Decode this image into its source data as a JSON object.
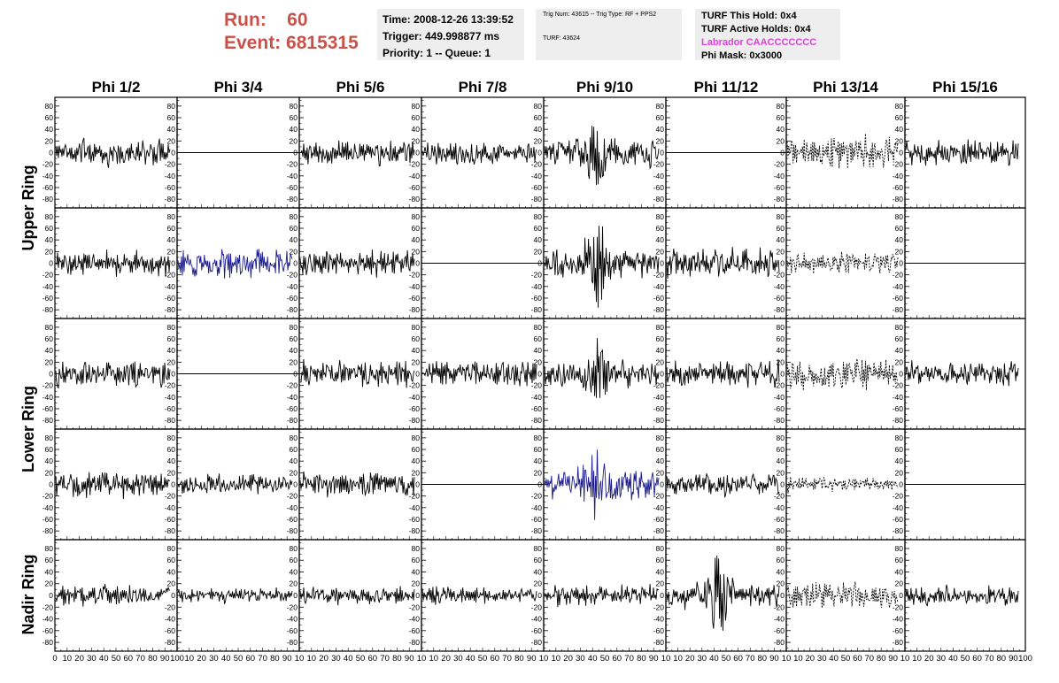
{
  "header": {
    "run_label": "Run:",
    "run_value": "60",
    "event_label": "Event:",
    "event_value": "6815315",
    "time": "Time: 2008-12-26 13:39:52",
    "trigger": "Trigger: 449.998877 ms",
    "priority": "Priority: 1 -- Queue: 1",
    "trig_num": "Trig Num: 43615 -- Trig Type: RF + PPS2",
    "turf": "TURF: 43624",
    "turf_this_hold": "TURF This Hold: 0x4",
    "turf_active_holds": "TURF Active Holds: 0x4",
    "labrador": "Labrador CAACCCCCCC",
    "phi_mask": "Phi Mask: 0x3000"
  },
  "colors": {
    "trace": "#000000",
    "highlight": "#1c1c8c",
    "header_red": "#c8524a",
    "labrador": "#e040e0"
  },
  "chart_data": {
    "type": "line",
    "columns": [
      "Phi 1/2",
      "Phi 3/4",
      "Phi 5/6",
      "Phi 7/8",
      "Phi 9/10",
      "Phi 11/12",
      "Phi 13/14",
      "Phi 15/16"
    ],
    "ring_labels": [
      "Upper Ring",
      "Lower Ring",
      "Nadir Ring"
    ],
    "ylim": [
      -95,
      95
    ],
    "xlim": [
      0,
      100
    ],
    "y_ticks": [
      -80,
      -60,
      -40,
      -20,
      0,
      20,
      40,
      60,
      80
    ],
    "x_tick_labels": [
      [
        "0",
        "10",
        "20",
        "30",
        "40",
        "50",
        "60",
        "70",
        "80",
        "90",
        "100"
      ],
      [
        "10",
        "20",
        "30",
        "40",
        "50",
        "60",
        "70",
        "80",
        "90",
        "10"
      ],
      [
        "10",
        "20",
        "30",
        "40",
        "50",
        "60",
        "70",
        "80",
        "90",
        "10"
      ],
      [
        "10",
        "20",
        "30",
        "40",
        "50",
        "60",
        "70",
        "80",
        "90",
        "10"
      ],
      [
        "10",
        "20",
        "30",
        "40",
        "50",
        "60",
        "70",
        "80",
        "90",
        "10"
      ],
      [
        "10",
        "20",
        "30",
        "40",
        "50",
        "60",
        "70",
        "80",
        "90",
        "10"
      ],
      [
        "10",
        "20",
        "30",
        "40",
        "50",
        "60",
        "70",
        "80",
        "90",
        "10"
      ],
      [
        "10",
        "20",
        "30",
        "40",
        "50",
        "60",
        "70",
        "80",
        "90",
        "100"
      ]
    ],
    "panels": [
      [
        {
          "amp": 18,
          "style": "solid",
          "color": "black",
          "burst": 0
        },
        {
          "amp": 0,
          "style": "flat",
          "color": "black",
          "burst": 0
        },
        {
          "amp": 18,
          "style": "solid",
          "color": "black",
          "burst": 0
        },
        {
          "amp": 16,
          "style": "solid",
          "color": "black",
          "burst": 0
        },
        {
          "amp": 20,
          "style": "solid",
          "color": "black",
          "burst": 45
        },
        {
          "amp": 0,
          "style": "flat",
          "color": "black",
          "burst": 0
        },
        {
          "amp": 22,
          "style": "dashed",
          "color": "black",
          "burst": 0
        },
        {
          "amp": 18,
          "style": "solid",
          "color": "black",
          "burst": 0
        }
      ],
      [
        {
          "amp": 18,
          "style": "solid",
          "color": "black",
          "burst": 0
        },
        {
          "amp": 20,
          "style": "solid",
          "color": "blue",
          "burst": 0
        },
        {
          "amp": 18,
          "style": "solid",
          "color": "black",
          "burst": 0
        },
        {
          "amp": 0,
          "style": "flat",
          "color": "black",
          "burst": 0
        },
        {
          "amp": 20,
          "style": "solid",
          "color": "black",
          "burst": 70
        },
        {
          "amp": 20,
          "style": "solid",
          "color": "black",
          "burst": 0
        },
        {
          "amp": 14,
          "style": "dashed",
          "color": "black",
          "burst": 0
        },
        {
          "amp": 0,
          "style": "flat",
          "color": "black",
          "burst": 0
        }
      ],
      [
        {
          "amp": 18,
          "style": "solid",
          "color": "black",
          "burst": 0
        },
        {
          "amp": 0,
          "style": "flat",
          "color": "black",
          "burst": 0
        },
        {
          "amp": 18,
          "style": "solid",
          "color": "black",
          "burst": 0
        },
        {
          "amp": 18,
          "style": "solid",
          "color": "black",
          "burst": 0
        },
        {
          "amp": 18,
          "style": "solid",
          "color": "black",
          "burst": 50
        },
        {
          "amp": 18,
          "style": "solid",
          "color": "black",
          "burst": 0
        },
        {
          "amp": 20,
          "style": "dashed",
          "color": "black",
          "burst": 0
        },
        {
          "amp": 16,
          "style": "solid",
          "color": "black",
          "burst": 0
        }
      ],
      [
        {
          "amp": 18,
          "style": "solid",
          "color": "black",
          "burst": 0
        },
        {
          "amp": 14,
          "style": "solid",
          "color": "black",
          "burst": 0
        },
        {
          "amp": 18,
          "style": "solid",
          "color": "black",
          "burst": 0
        },
        {
          "amp": 0,
          "style": "flat",
          "color": "black",
          "burst": 0
        },
        {
          "amp": 22,
          "style": "solid",
          "color": "blue",
          "burst": 55
        },
        {
          "amp": 16,
          "style": "solid",
          "color": "black",
          "burst": 0
        },
        {
          "amp": 10,
          "style": "dashed",
          "color": "black",
          "burst": 0
        },
        {
          "amp": 0,
          "style": "flat",
          "color": "black",
          "burst": 0
        }
      ],
      [
        {
          "amp": 14,
          "style": "solid",
          "color": "black",
          "burst": 0
        },
        {
          "amp": 10,
          "style": "solid",
          "color": "black",
          "burst": 0
        },
        {
          "amp": 12,
          "style": "solid",
          "color": "black",
          "burst": 0
        },
        {
          "amp": 12,
          "style": "solid",
          "color": "black",
          "burst": 0
        },
        {
          "amp": 14,
          "style": "solid",
          "color": "black",
          "burst": 0
        },
        {
          "amp": 18,
          "style": "solid",
          "color": "black",
          "burst": 75
        },
        {
          "amp": 18,
          "style": "dashed",
          "color": "black",
          "burst": 0
        },
        {
          "amp": 14,
          "style": "solid",
          "color": "black",
          "burst": 0
        }
      ]
    ]
  }
}
